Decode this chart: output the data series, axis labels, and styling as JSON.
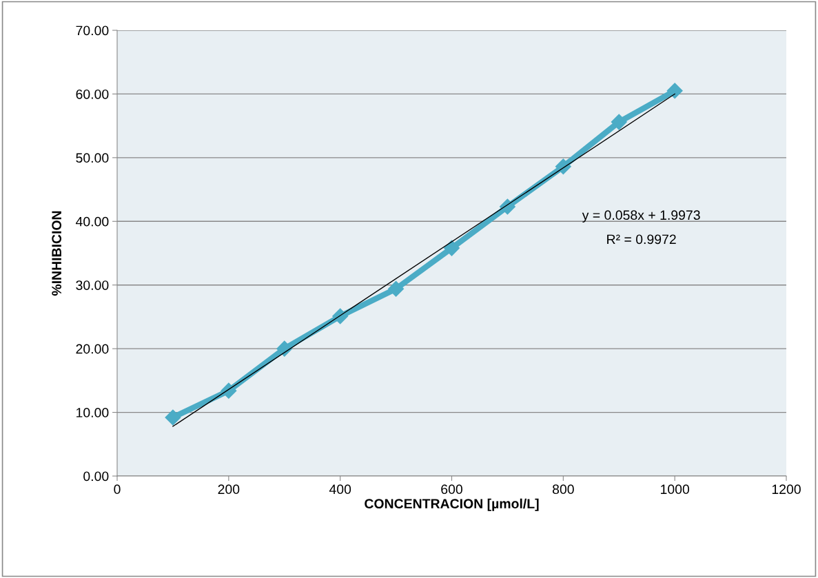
{
  "chart_data": {
    "type": "line",
    "xlabel": "CONCENTRACION [µmol/L]",
    "ylabel": "%INHIBICION",
    "xlim": [
      0,
      1200
    ],
    "xticks": [
      0,
      200,
      400,
      600,
      800,
      1000,
      1200
    ],
    "ylim": [
      0,
      70
    ],
    "yticks": [
      {
        "value": 0,
        "label": "0.00"
      },
      {
        "value": 10,
        "label": "10.00"
      },
      {
        "value": 20,
        "label": "20.00"
      },
      {
        "value": 30,
        "label": "30.00"
      },
      {
        "value": 40,
        "label": "40.00"
      },
      {
        "value": 50,
        "label": "50.00"
      },
      {
        "value": 60,
        "label": "60.00"
      },
      {
        "value": 70,
        "label": "70.00"
      }
    ],
    "grid": "y",
    "marker": "diamond",
    "line_style": "solid",
    "series": [
      {
        "color": "#4bacc6",
        "x": [
          100,
          200,
          300,
          400,
          500,
          600,
          700,
          800,
          900,
          1000
        ],
        "values": [
          9.2,
          13.4,
          20.0,
          25.1,
          29.4,
          35.8,
          42.3,
          48.6,
          55.6,
          60.5
        ]
      },
      {
        "type": "line",
        "marker": "none",
        "color": "#000000",
        "x": [
          100,
          1000
        ],
        "values": [
          7.8,
          60.0
        ]
      }
    ],
    "annotations": [
      "y = 0.058x + 1.9973",
      "R² = 0.9972"
    ]
  }
}
